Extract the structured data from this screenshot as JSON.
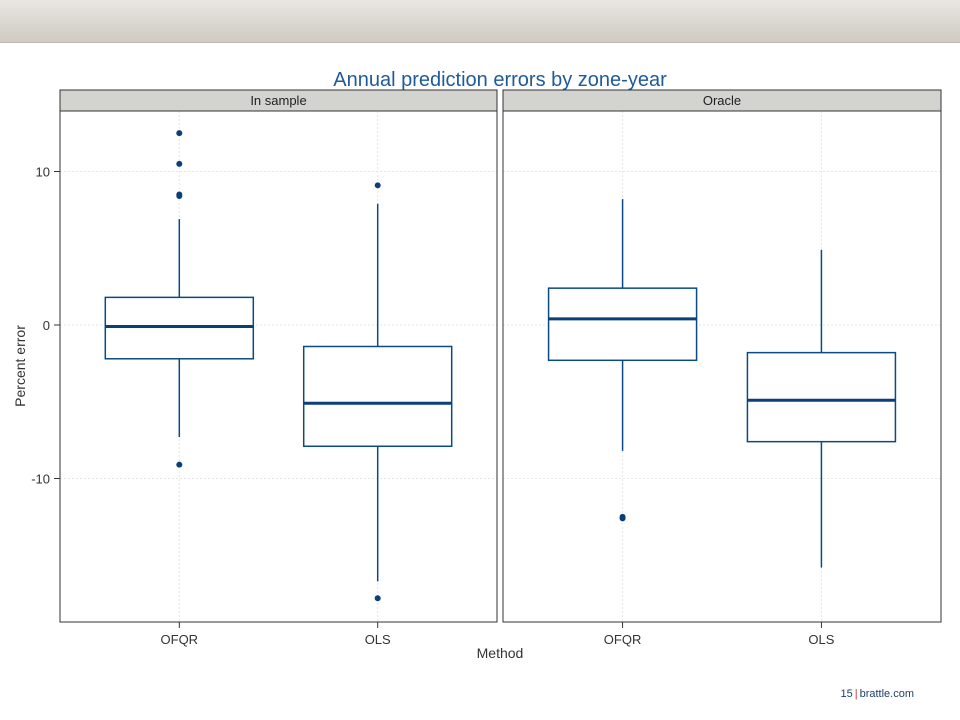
{
  "slide": {
    "page_number": "15",
    "separator": "|",
    "site": "brattle.com"
  },
  "colors": {
    "title": "#1f5a99",
    "box": "#0b4a82",
    "median": "#0b3f7a",
    "strip_fill": "#d3d3cf",
    "panel_border": "#333333",
    "grid": "#e6e6e6",
    "band": "#d9d6cf"
  },
  "chart_data": {
    "type": "box",
    "title": "Annual prediction errors by zone-year",
    "xlabel": "Method",
    "ylabel": "Percent error",
    "ylim": [
      -19.5,
      14
    ],
    "yticks": [
      10,
      0,
      -10
    ],
    "ytick_labels": [
      "10",
      "0",
      "-10"
    ],
    "categories": [
      "OFQR",
      "OLS"
    ],
    "grid": true,
    "panels": [
      {
        "name": "In sample",
        "boxes": [
          {
            "category": "OFQR",
            "whisker_low": -7.3,
            "q1": -2.2,
            "median": -0.1,
            "q3": 1.8,
            "whisker_high": 6.9,
            "outliers": [
              12.5,
              10.5,
              8.5,
              8.4,
              -9.1
            ]
          },
          {
            "category": "OLS",
            "whisker_low": -16.7,
            "q1": -7.9,
            "median": -5.1,
            "q3": -1.4,
            "whisker_high": 7.9,
            "outliers": [
              9.1,
              -17.8
            ]
          }
        ]
      },
      {
        "name": "Oracle",
        "boxes": [
          {
            "category": "OFQR",
            "whisker_low": -8.2,
            "q1": -2.3,
            "median": 0.4,
            "q3": 2.4,
            "whisker_high": 8.2,
            "outliers": [
              -12.6,
              -12.5
            ]
          },
          {
            "category": "OLS",
            "whisker_low": -15.8,
            "q1": -7.6,
            "median": -4.9,
            "q3": -1.8,
            "whisker_high": 4.9,
            "outliers": []
          }
        ]
      }
    ]
  }
}
